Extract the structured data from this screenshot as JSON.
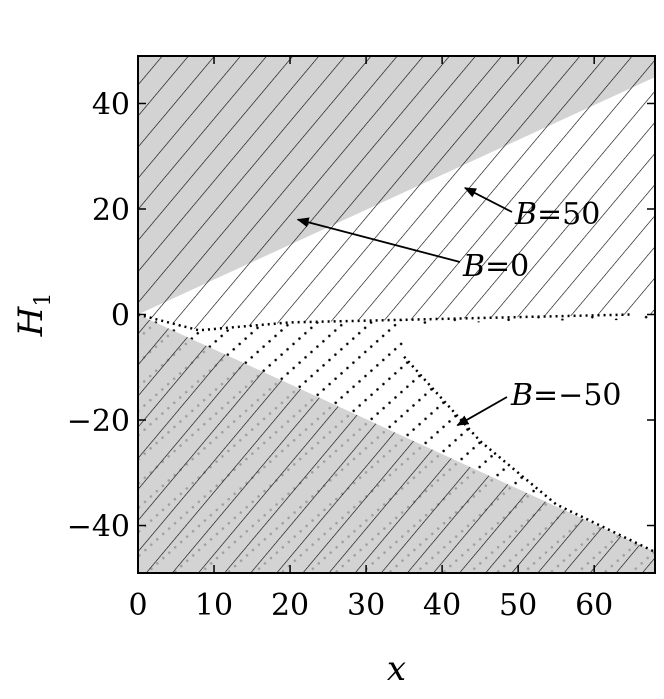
{
  "chart_data": {
    "type": "area",
    "xlabel": "x",
    "ylabel": {
      "main": "H",
      "sub": "1"
    },
    "xlim": [
      0,
      68
    ],
    "ylim": [
      -49,
      49
    ],
    "xticks": [
      0,
      10,
      20,
      30,
      40,
      50,
      60
    ],
    "yticks": [
      -40,
      -20,
      0,
      20,
      40
    ],
    "grid": false,
    "regions": [
      {
        "name": "B=0",
        "shading": "gray fill",
        "boundary_upper": {
          "x": [
            0,
            68
          ],
          "y": [
            0,
            45
          ]
        },
        "boundary_lower": {
          "x": [
            0,
            68
          ],
          "y": [
            0,
            -45
          ]
        }
      },
      {
        "name": "B=50",
        "shading": "diagonal hatch",
        "boundary_upper": {
          "x": [
            0,
            68
          ],
          "y": [
            0,
            45
          ]
        },
        "boundary_lower": {
          "x": [
            0,
            8,
            20,
            35,
            50,
            65
          ],
          "y": [
            0,
            -3,
            -1.5,
            -1,
            -0.5,
            0
          ]
        }
      },
      {
        "name": "B=-50",
        "shading": "dotted hatch",
        "boundary_upper": {
          "x": [
            0,
            8,
            20,
            35,
            50,
            65
          ],
          "y": [
            0,
            -3,
            -1.5,
            -1,
            -0.5,
            0
          ]
        },
        "boundary_lower": {
          "x": [
            0,
            10,
            35,
            45,
            55,
            68
          ],
          "y": [
            0,
            -4,
            -10,
            -24,
            -36,
            -45
          ]
        }
      }
    ],
    "annotations": [
      {
        "var": "B",
        "rest": "=50",
        "arrow_to": {
          "x": 43,
          "y": 24
        }
      },
      {
        "var": "B",
        "rest": "=0",
        "arrow_to": {
          "x": 21,
          "y": 18
        }
      },
      {
        "var": "B",
        "rest": "=−50",
        "arrow_to": {
          "x": 42,
          "y": -21
        }
      }
    ]
  }
}
